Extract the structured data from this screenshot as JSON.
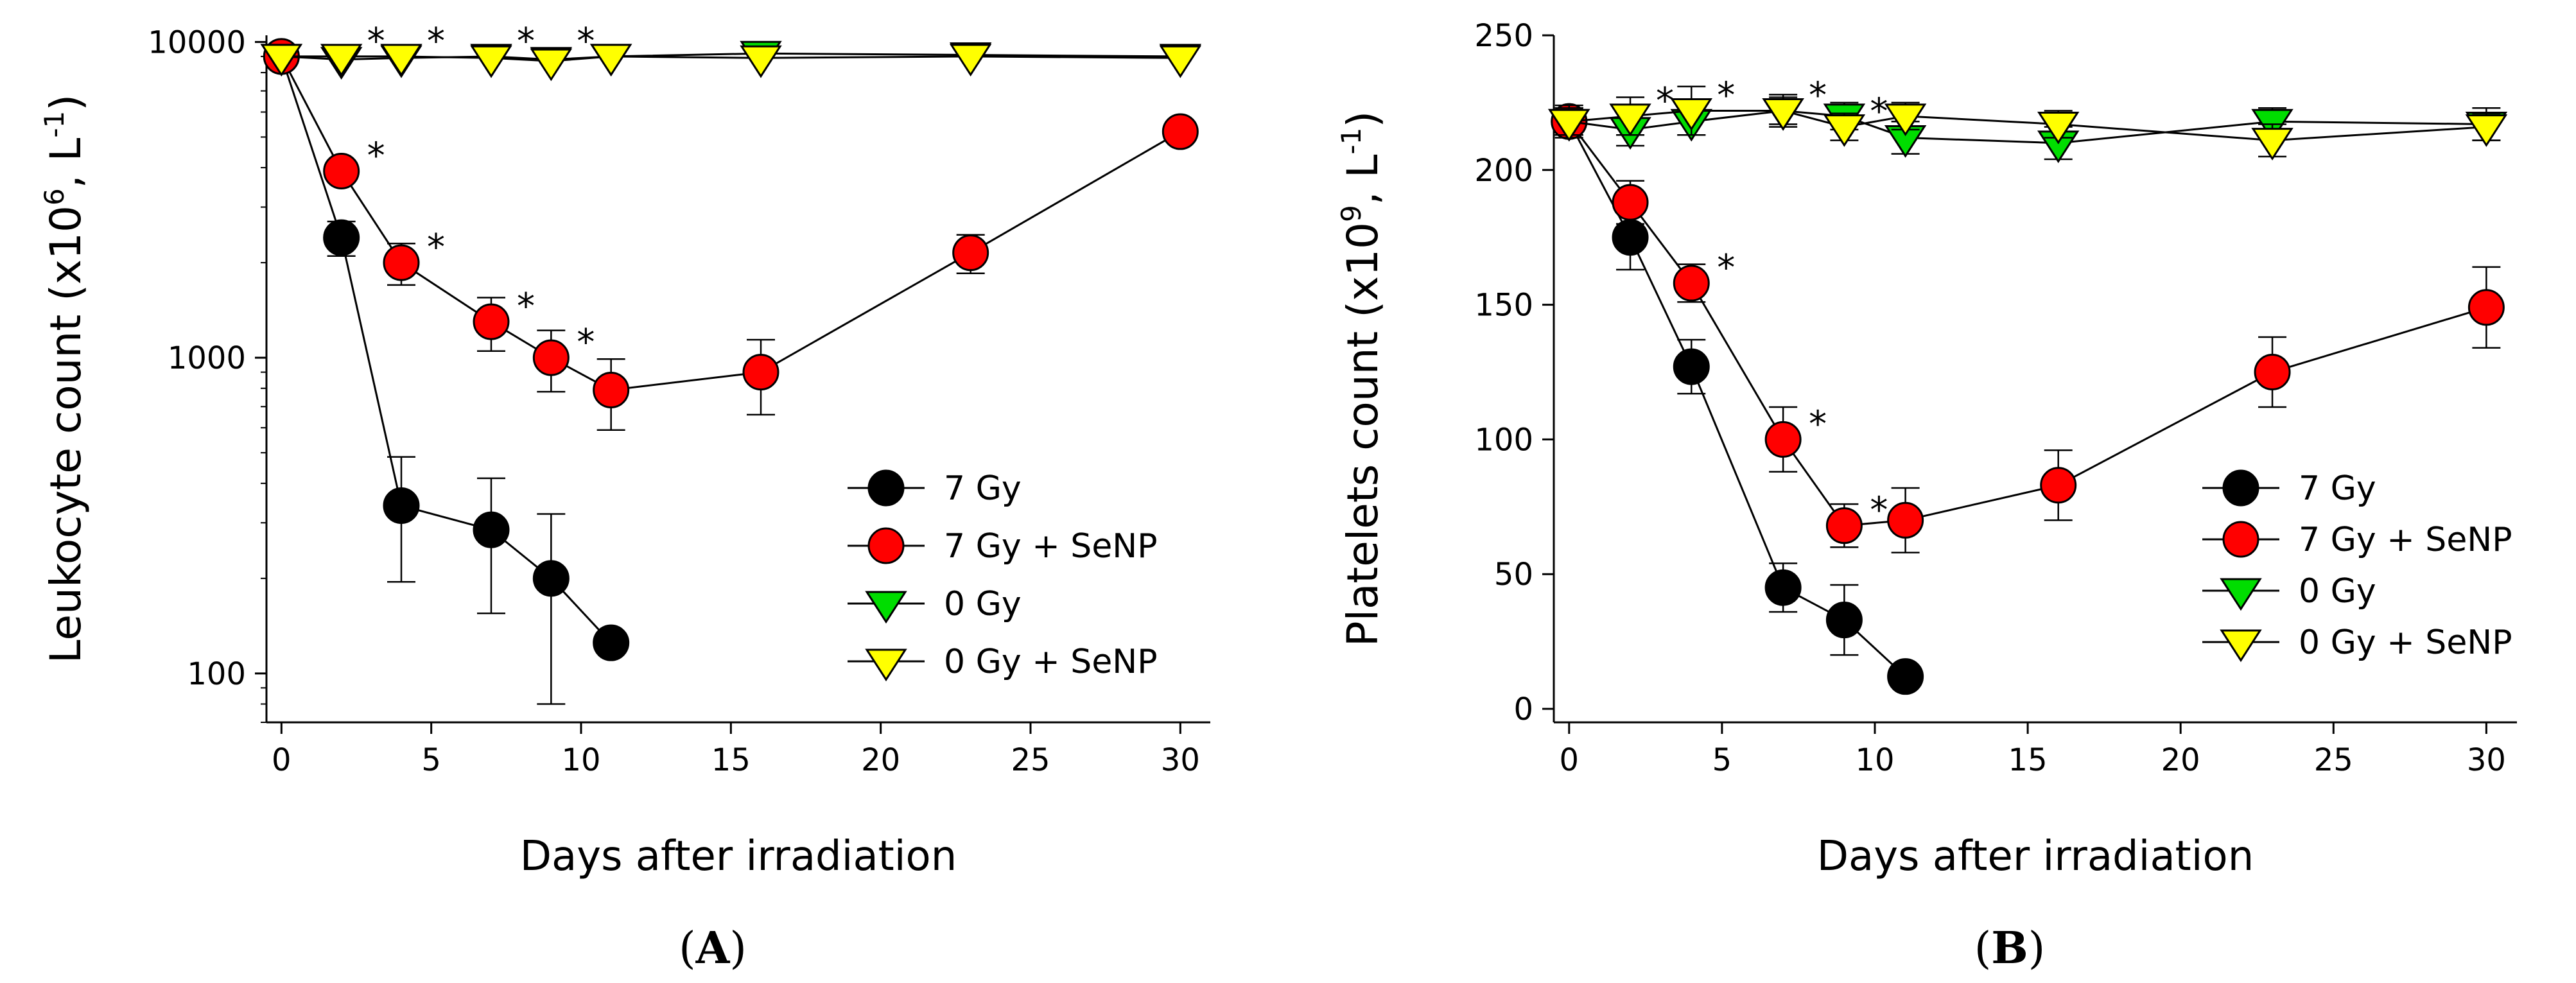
{
  "colors": {
    "7 Gy": "#000000",
    "7 Gy + SeNP": "#ff0000",
    "0 Gy": "#00dd00",
    "0 Gy + SeNP": "#ffff00"
  },
  "chart_data": [
    {
      "panel": "A",
      "panel_label": "(A)",
      "panel_letter": "A",
      "type": "line",
      "yscale": "log",
      "xlabel": "Days after irradiation",
      "ylabel_main": "Leukocyte count (x10",
      "ylabel_exp1": "6",
      "ylabel_mid": ", L",
      "ylabel_exp2": "-1",
      "ylabel_end": ")",
      "xlim": [
        -0.5,
        31
      ],
      "ylim": [
        70,
        10500
      ],
      "xticks": [
        0,
        5,
        10,
        15,
        20,
        25,
        30
      ],
      "xtick_labels": [
        "0",
        "5",
        "10",
        "15",
        "20",
        "25",
        "30"
      ],
      "yticks": [
        100,
        1000,
        10000
      ],
      "ytick_labels": [
        "100",
        "1000",
        "10000"
      ],
      "series": [
        {
          "name": "7 Gy",
          "marker": "circle",
          "x": [
            0,
            2,
            4,
            7,
            9,
            11
          ],
          "y": [
            9000,
            2400,
            340,
            285,
            200,
            125
          ],
          "err": [
            0,
            300,
            145,
            130,
            120,
            0
          ]
        },
        {
          "name": "7 Gy + SeNP",
          "marker": "circle",
          "x": [
            0,
            2,
            4,
            7,
            9,
            11,
            16,
            23,
            30
          ],
          "y": [
            9000,
            3900,
            2000,
            1300,
            1000,
            790,
            900,
            2150,
            5200
          ],
          "err": [
            0,
            0,
            300,
            250,
            220,
            200,
            240,
            300,
            0
          ]
        },
        {
          "name": "0 Gy",
          "marker": "triangle-down",
          "x": [
            0,
            2,
            4,
            7,
            9,
            11,
            16,
            23,
            30
          ],
          "y": [
            9000,
            8800,
            8900,
            9000,
            8800,
            9000,
            9200,
            9100,
            9000
          ],
          "err": [
            0,
            0,
            0,
            0,
            0,
            0,
            0,
            0,
            0
          ]
        },
        {
          "name": "0 Gy + SeNP",
          "marker": "triangle-down",
          "x": [
            0,
            2,
            4,
            7,
            9,
            11,
            16,
            23,
            30
          ],
          "y": [
            9000,
            9000,
            9000,
            8900,
            8700,
            9000,
            8900,
            9000,
            8900
          ],
          "err": [
            0,
            0,
            0,
            0,
            0,
            0,
            0,
            0,
            0
          ]
        }
      ],
      "annotations": [
        {
          "text": "*",
          "x": 2,
          "y": 9000
        },
        {
          "text": "*",
          "x": 4,
          "y": 9000
        },
        {
          "text": "*",
          "x": 7,
          "y": 9000
        },
        {
          "text": "*",
          "x": 9,
          "y": 9000
        },
        {
          "text": "*",
          "x": 2,
          "y": 3900
        },
        {
          "text": "*",
          "x": 4,
          "y": 2000
        },
        {
          "text": "*",
          "x": 7,
          "y": 1300
        },
        {
          "text": "*",
          "x": 9,
          "y": 1000
        }
      ],
      "legend_position": "bottom-right"
    },
    {
      "panel": "B",
      "panel_label": "(B)",
      "panel_letter": "B",
      "type": "line",
      "yscale": "linear",
      "xlabel": "Days after irradiation",
      "ylabel_main": "Platelets count (x10",
      "ylabel_exp1": "9",
      "ylabel_mid": ", L",
      "ylabel_exp2": "-1",
      "ylabel_end": ")",
      "xlim": [
        -0.5,
        31
      ],
      "ylim": [
        -5,
        250
      ],
      "xticks": [
        0,
        5,
        10,
        15,
        20,
        25,
        30
      ],
      "xtick_labels": [
        "0",
        "5",
        "10",
        "15",
        "20",
        "25",
        "30"
      ],
      "yticks": [
        0,
        50,
        100,
        150,
        200,
        250
      ],
      "ytick_labels": [
        "0",
        "50",
        "100",
        "150",
        "200",
        "250"
      ],
      "series": [
        {
          "name": "7 Gy",
          "marker": "circle",
          "x": [
            0,
            2,
            4,
            7,
            9,
            11
          ],
          "y": [
            218,
            175,
            127,
            45,
            33,
            12
          ],
          "err": [
            5,
            12,
            10,
            9,
            13,
            0
          ]
        },
        {
          "name": "7 Gy + SeNP",
          "marker": "circle",
          "x": [
            0,
            2,
            4,
            7,
            9,
            11,
            16,
            23,
            30
          ],
          "y": [
            218,
            188,
            158,
            100,
            68,
            70,
            83,
            125,
            149
          ],
          "err": [
            5,
            8,
            7,
            12,
            8,
            12,
            13,
            13,
            15
          ]
        },
        {
          "name": "0 Gy",
          "marker": "triangle-down",
          "x": [
            0,
            2,
            4,
            7,
            9,
            11,
            16,
            23,
            30
          ],
          "y": [
            218,
            215,
            218,
            222,
            220,
            212,
            210,
            218,
            217
          ],
          "err": [
            5,
            6,
            5,
            5,
            5,
            6,
            6,
            5,
            6
          ]
        },
        {
          "name": "0 Gy + SeNP",
          "marker": "triangle-down",
          "x": [
            0,
            2,
            4,
            7,
            9,
            11,
            16,
            23,
            30
          ],
          "y": [
            218,
            220,
            222,
            222,
            216,
            220,
            217,
            211,
            216
          ],
          "err": [
            6,
            7,
            9,
            6,
            5,
            5,
            5,
            6,
            5
          ]
        }
      ],
      "annotations": [
        {
          "text": "*",
          "x": 2,
          "y": 220
        },
        {
          "text": "*",
          "x": 4,
          "y": 222
        },
        {
          "text": "*",
          "x": 7,
          "y": 222
        },
        {
          "text": "*",
          "x": 9,
          "y": 216
        },
        {
          "text": "*",
          "x": 4,
          "y": 158
        },
        {
          "text": "*",
          "x": 7,
          "y": 100
        },
        {
          "text": "*",
          "x": 9,
          "y": 68
        }
      ],
      "legend_position": "bottom-right"
    }
  ]
}
